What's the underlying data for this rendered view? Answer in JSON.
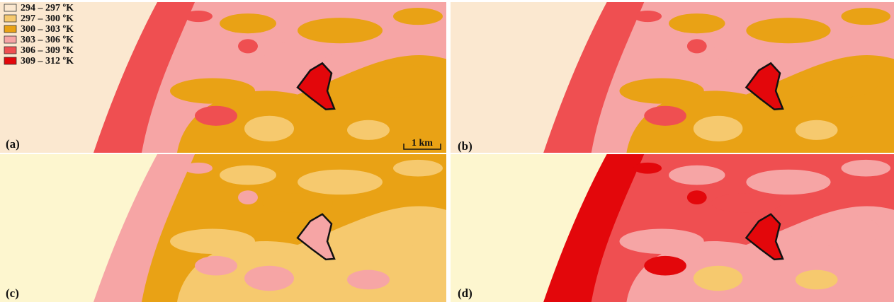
{
  "legend": {
    "items": [
      {
        "label": "294 – 297 ºK",
        "color": "#fbe8d0"
      },
      {
        "label": "297 – 300 ºK",
        "color": "#f6c96e"
      },
      {
        "label": "300 – 303 ºK",
        "color": "#e9a215"
      },
      {
        "label": "303 – 306 ºK",
        "color": "#f6a5a5"
      },
      {
        "label": "306 – 309 ºK",
        "color": "#ef4f51"
      },
      {
        "label": "309 – 312 ºK",
        "color": "#e3070b"
      }
    ]
  },
  "panels": [
    {
      "label": "(a)"
    },
    {
      "label": "(b)"
    },
    {
      "label": "(c)"
    },
    {
      "label": "(d)"
    }
  ],
  "scale_bar": {
    "label": "1 km"
  }
}
